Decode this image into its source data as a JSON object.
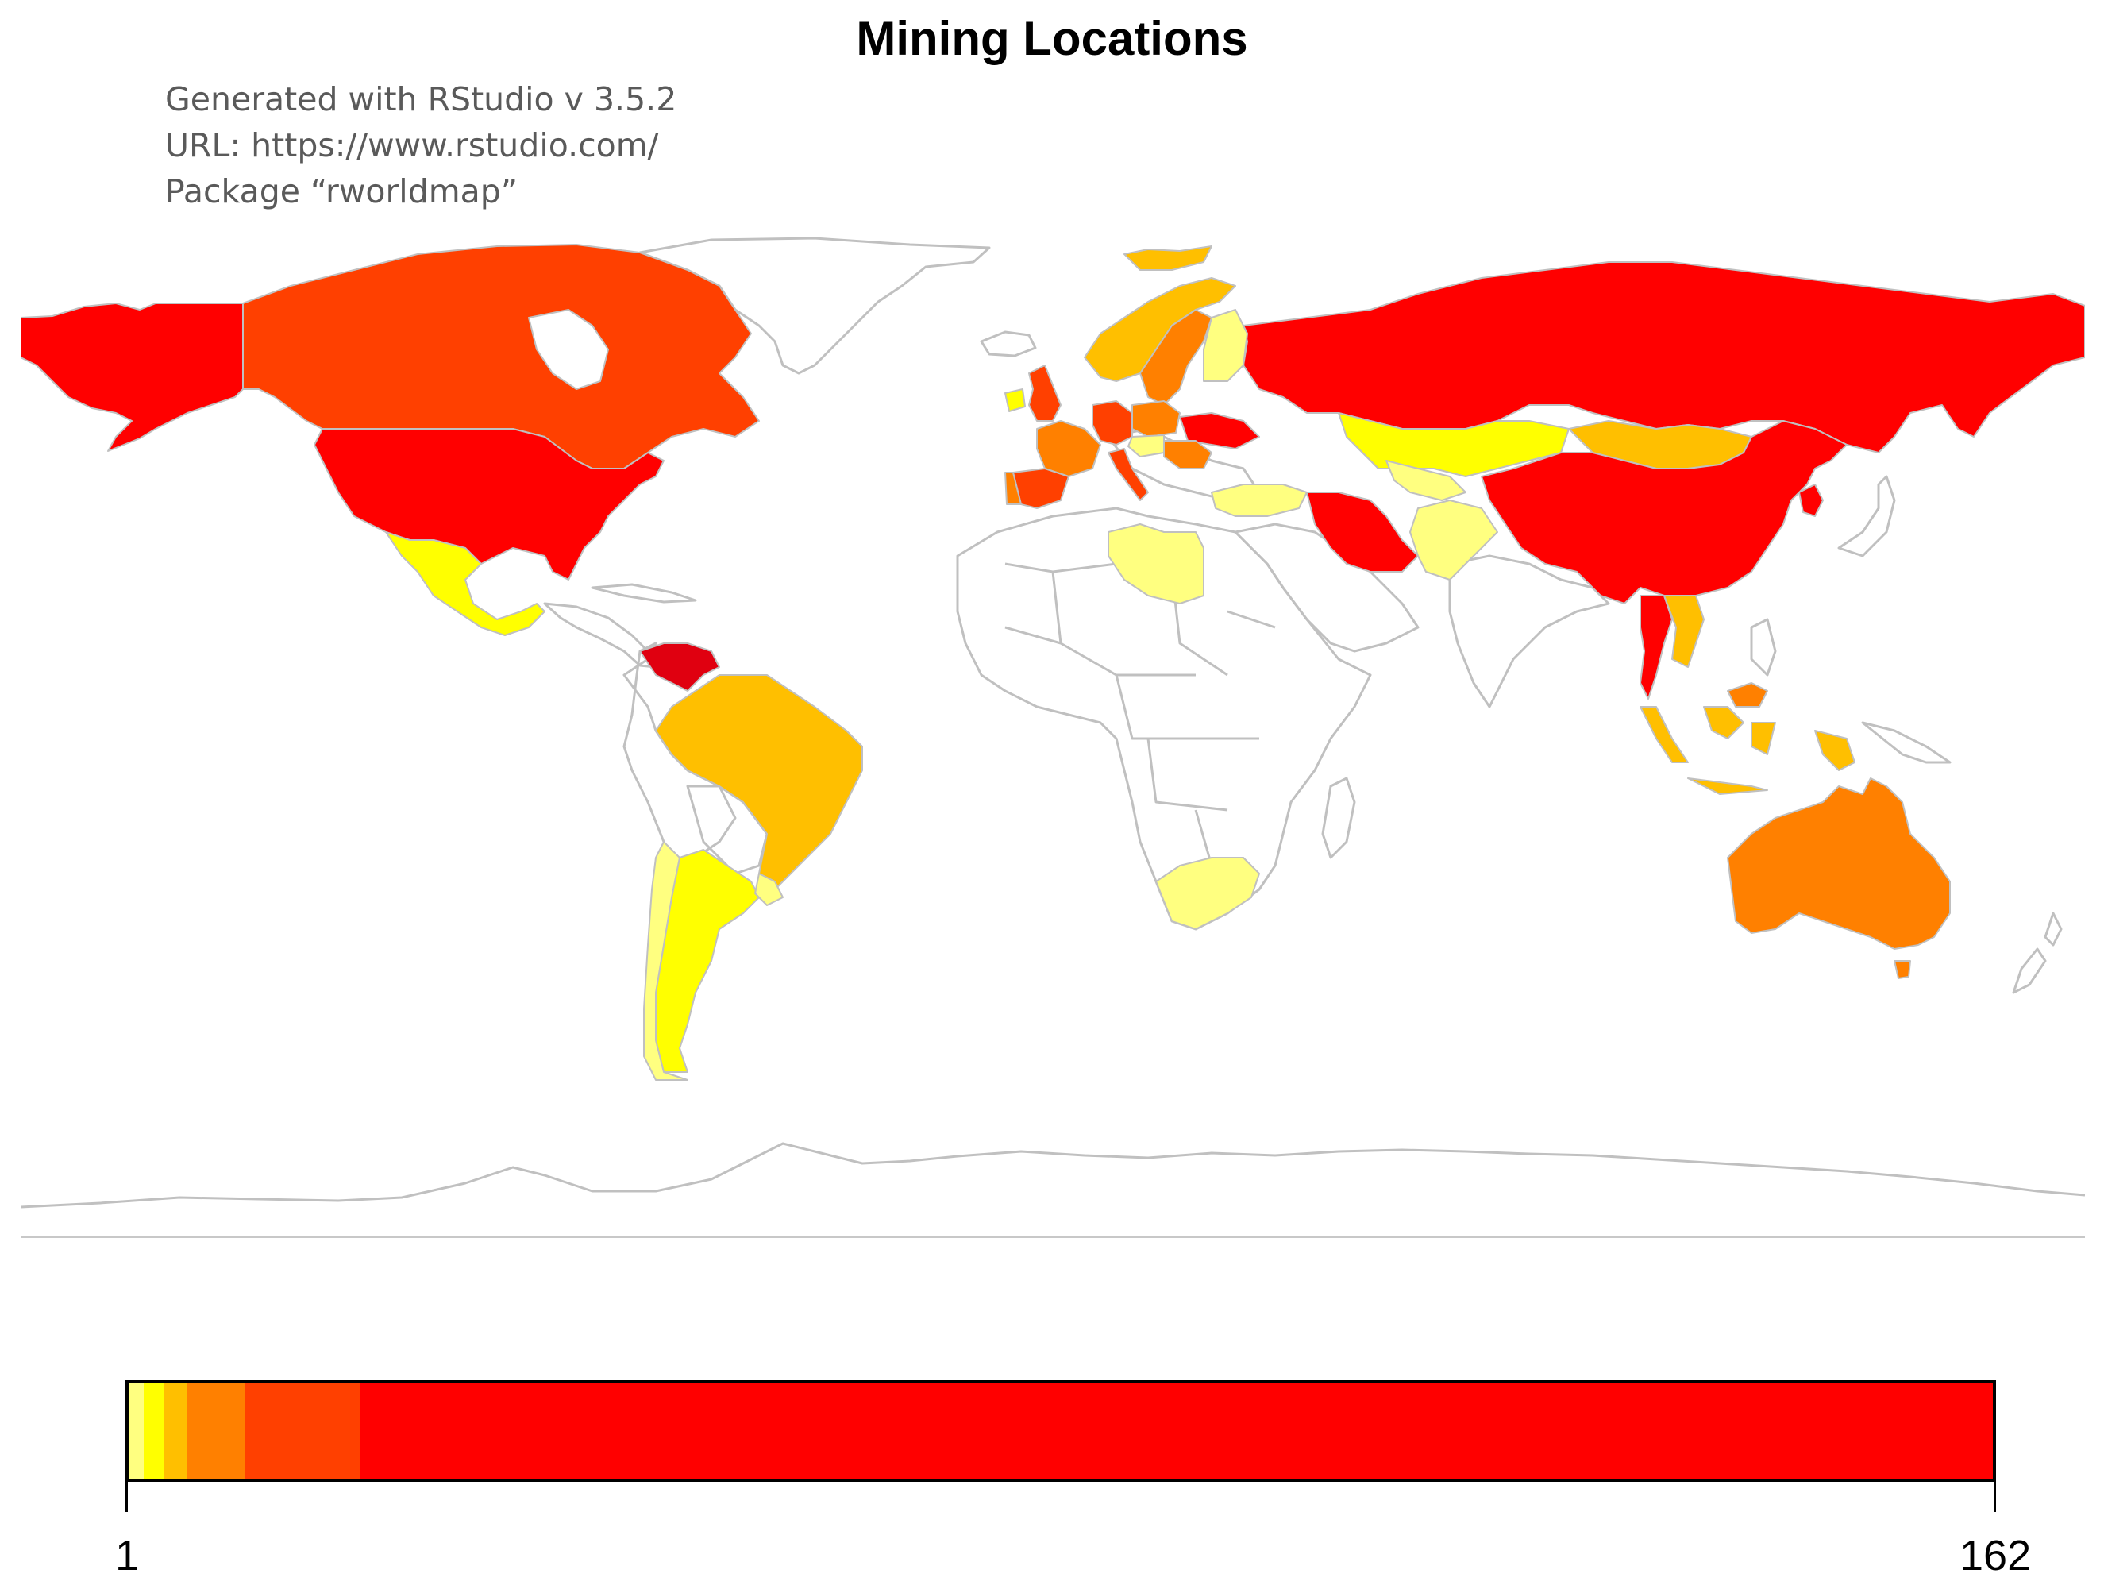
{
  "title": "Mining Locations",
  "credits": {
    "line1": "Generated with RStudio v 3.5.2",
    "line2": "URL: https://www.rstudio.com/",
    "line3": "Package “rworldmap”"
  },
  "palette": {
    "pale_yellow": "#ffff80",
    "yellow": "#ffff00",
    "gold": "#ffbf00",
    "orange": "#ff8000",
    "red_orange": "#ff4000",
    "red": "#ff0000",
    "border": "#c0c0c0",
    "no_data": "#ffffff"
  },
  "map_data": {
    "projection": "equirectangular",
    "value_range": [
      1,
      162
    ],
    "countries": [
      {
        "name": "United States",
        "class": "red"
      },
      {
        "name": "Alaska",
        "class": "red"
      },
      {
        "name": "Canada",
        "class": "red_orange"
      },
      {
        "name": "Mexico",
        "class": "yellow"
      },
      {
        "name": "Venezuela",
        "class": "red"
      },
      {
        "name": "Brazil",
        "class": "gold"
      },
      {
        "name": "Argentina",
        "class": "yellow"
      },
      {
        "name": "Chile",
        "class": "pale_yellow"
      },
      {
        "name": "Uruguay",
        "class": "pale_yellow"
      },
      {
        "name": "Russia",
        "class": "red"
      },
      {
        "name": "China",
        "class": "red"
      },
      {
        "name": "Kazakhstan",
        "class": "yellow"
      },
      {
        "name": "Mongolia",
        "class": "gold"
      },
      {
        "name": "Iran",
        "class": "red"
      },
      {
        "name": "Pakistan",
        "class": "pale_yellow"
      },
      {
        "name": "Uzbekistan",
        "class": "pale_yellow"
      },
      {
        "name": "Turkey",
        "class": "pale_yellow"
      },
      {
        "name": "Libya",
        "class": "pale_yellow"
      },
      {
        "name": "South Africa",
        "class": "pale_yellow"
      },
      {
        "name": "Australia",
        "class": "orange"
      },
      {
        "name": "Tasmania",
        "class": "orange"
      },
      {
        "name": "Indonesia",
        "class": "gold"
      },
      {
        "name": "Malaysia",
        "class": "orange"
      },
      {
        "name": "Thailand",
        "class": "red"
      },
      {
        "name": "Vietnam",
        "class": "gold"
      },
      {
        "name": "South Korea",
        "class": "red"
      },
      {
        "name": "Sweden",
        "class": "orange"
      },
      {
        "name": "Norway",
        "class": "gold"
      },
      {
        "name": "Finland",
        "class": "pale_yellow"
      },
      {
        "name": "Svalbard",
        "class": "gold"
      },
      {
        "name": "United Kingdom",
        "class": "red_orange"
      },
      {
        "name": "Ireland",
        "class": "yellow"
      },
      {
        "name": "France",
        "class": "orange"
      },
      {
        "name": "Spain",
        "class": "red_orange"
      },
      {
        "name": "Portugal",
        "class": "orange"
      },
      {
        "name": "Germany",
        "class": "red_orange"
      },
      {
        "name": "Poland",
        "class": "orange"
      },
      {
        "name": "Ukraine",
        "class": "red"
      },
      {
        "name": "Italy",
        "class": "red_orange"
      },
      {
        "name": "Romania",
        "class": "orange"
      }
    ]
  },
  "legend": {
    "min_label": "1",
    "max_label": "162",
    "segments": [
      {
        "color": "#ffff80",
        "weight": 0.008
      },
      {
        "color": "#ffff00",
        "weight": 0.011
      },
      {
        "color": "#ffbf00",
        "weight": 0.012
      },
      {
        "color": "#ff8000",
        "weight": 0.031
      },
      {
        "color": "#ff4000",
        "weight": 0.062
      },
      {
        "color": "#ff0000",
        "weight": 0.876
      }
    ]
  }
}
